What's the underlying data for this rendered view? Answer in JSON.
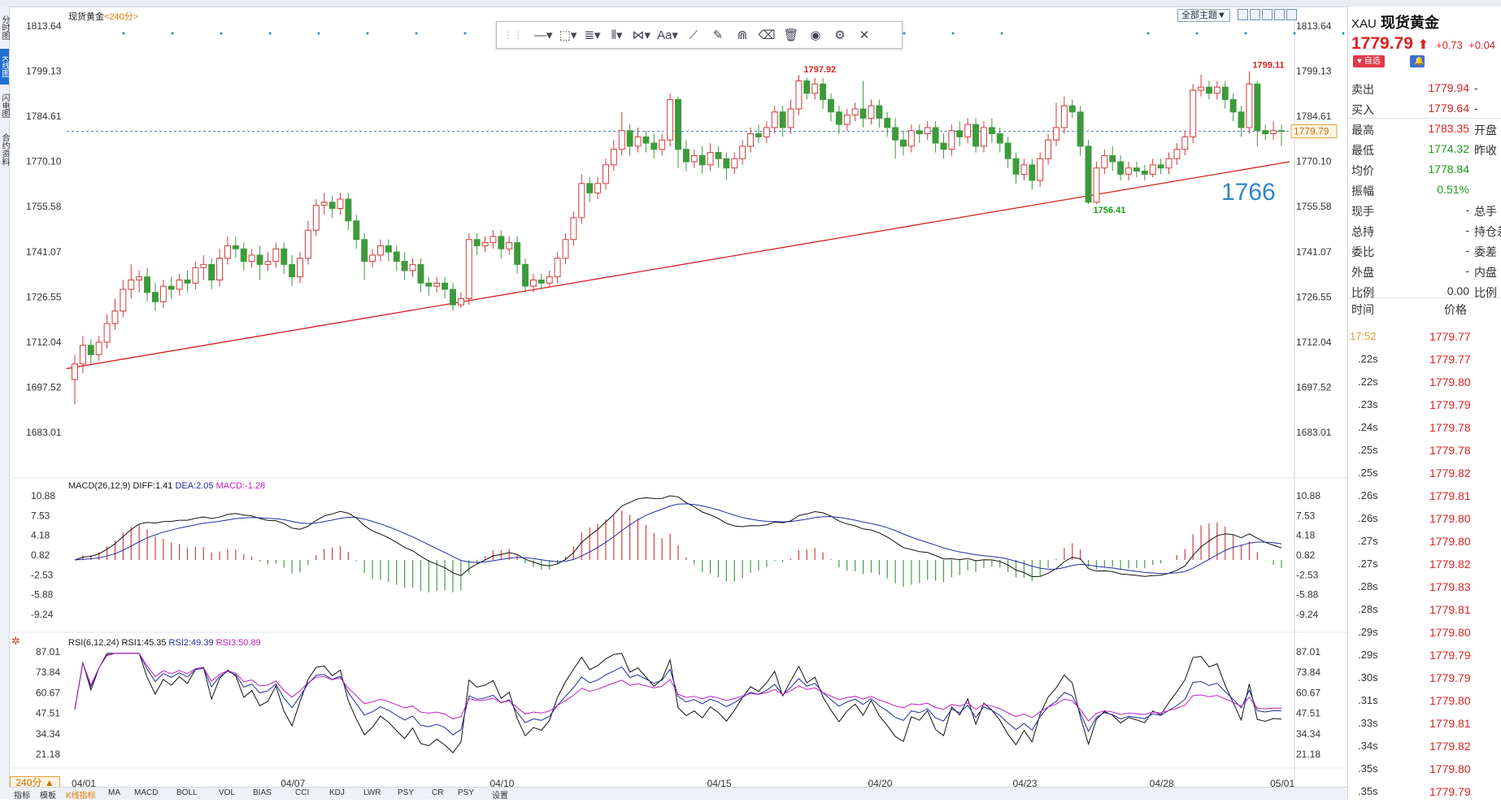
{
  "chart_data": [
    {
      "type": "candlestick",
      "title": "现货黄金",
      "period_label": "240分",
      "y_ticks": [
        1813.64,
        1799.13,
        1784.61,
        1770.1,
        1755.58,
        1741.07,
        1726.55,
        1712.04,
        1697.52,
        1683.01
      ],
      "x_labels": [
        "04/01",
        "04/07",
        "04/10",
        "04/15",
        "04/20",
        "04/23",
        "04/28",
        "05/01"
      ],
      "current_price": 1779.79,
      "high_label": "1797.92",
      "high2_label": "1799.11",
      "low_label": "1756.41",
      "annotation": "1766",
      "trendline": [
        [
          0,
          1703.5
        ],
        [
          206,
          1770.0
        ]
      ],
      "candles": [
        [
          1700,
          1705,
          1692,
          1708
        ],
        [
          1705,
          1711,
          1702,
          1714
        ],
        [
          1711,
          1708,
          1705,
          1713
        ],
        [
          1708,
          1712,
          1706,
          1714
        ],
        [
          1712,
          1718,
          1710,
          1721
        ],
        [
          1718,
          1722,
          1716,
          1726
        ],
        [
          1722,
          1729,
          1720,
          1732
        ],
        [
          1729,
          1732,
          1726,
          1737
        ],
        [
          1732,
          1733,
          1728,
          1735
        ],
        [
          1733,
          1728,
          1725,
          1736
        ],
        [
          1728,
          1725,
          1722,
          1731
        ],
        [
          1725,
          1730,
          1723,
          1732
        ],
        [
          1730,
          1729,
          1726,
          1733
        ],
        [
          1729,
          1732,
          1727,
          1734
        ],
        [
          1732,
          1731,
          1728,
          1735
        ],
        [
          1731,
          1736,
          1729,
          1738
        ],
        [
          1736,
          1737,
          1732,
          1740
        ],
        [
          1737,
          1732,
          1729,
          1739
        ],
        [
          1732,
          1739,
          1730,
          1742
        ],
        [
          1739,
          1743,
          1737,
          1746
        ],
        [
          1743,
          1742,
          1739,
          1746
        ],
        [
          1742,
          1738,
          1735,
          1744
        ],
        [
          1738,
          1740,
          1736,
          1742
        ],
        [
          1740,
          1737,
          1732,
          1743
        ],
        [
          1737,
          1738,
          1735,
          1741
        ],
        [
          1738,
          1742,
          1736,
          1744
        ],
        [
          1742,
          1737,
          1734,
          1744
        ],
        [
          1737,
          1733,
          1730,
          1740
        ],
        [
          1733,
          1739,
          1731,
          1741
        ],
        [
          1739,
          1748,
          1737,
          1751
        ],
        [
          1748,
          1756,
          1746,
          1758
        ],
        [
          1756,
          1757,
          1753,
          1760
        ],
        [
          1757,
          1755,
          1752,
          1759
        ],
        [
          1755,
          1758,
          1753,
          1760
        ],
        [
          1758,
          1751,
          1748,
          1760
        ],
        [
          1751,
          1745,
          1742,
          1753
        ],
        [
          1745,
          1738,
          1732,
          1747
        ],
        [
          1738,
          1740,
          1736,
          1742
        ],
        [
          1740,
          1743,
          1738,
          1745
        ],
        [
          1743,
          1741,
          1738,
          1745
        ],
        [
          1741,
          1738,
          1735,
          1743
        ],
        [
          1738,
          1735,
          1732,
          1741
        ],
        [
          1735,
          1737,
          1733,
          1739
        ],
        [
          1737,
          1731,
          1728,
          1739
        ],
        [
          1731,
          1730,
          1727,
          1733
        ],
        [
          1730,
          1731,
          1728,
          1733
        ],
        [
          1731,
          1729,
          1726,
          1733
        ],
        [
          1729,
          1724,
          1722,
          1731
        ],
        [
          1724,
          1726,
          1723,
          1728
        ],
        [
          1726,
          1745,
          1724,
          1747
        ],
        [
          1745,
          1743,
          1740,
          1747
        ],
        [
          1743,
          1744,
          1741,
          1746
        ],
        [
          1744,
          1746,
          1742,
          1748
        ],
        [
          1746,
          1742,
          1739,
          1748
        ],
        [
          1742,
          1744,
          1740,
          1746
        ],
        [
          1744,
          1737,
          1734,
          1746
        ],
        [
          1737,
          1730,
          1728,
          1739
        ],
        [
          1730,
          1732,
          1728,
          1734
        ],
        [
          1732,
          1731,
          1729,
          1734
        ],
        [
          1731,
          1733,
          1730,
          1735
        ],
        [
          1733,
          1739,
          1731,
          1741
        ],
        [
          1739,
          1745,
          1737,
          1747
        ],
        [
          1745,
          1752,
          1743,
          1754
        ],
        [
          1752,
          1763,
          1750,
          1766
        ],
        [
          1763,
          1760,
          1757,
          1765
        ],
        [
          1760,
          1763,
          1758,
          1765
        ],
        [
          1763,
          1769,
          1761,
          1771
        ],
        [
          1769,
          1774,
          1767,
          1777
        ],
        [
          1774,
          1780,
          1772,
          1786
        ],
        [
          1780,
          1775,
          1772,
          1782
        ],
        [
          1775,
          1778,
          1773,
          1781
        ],
        [
          1778,
          1776,
          1773,
          1780
        ],
        [
          1776,
          1774,
          1771,
          1779
        ],
        [
          1774,
          1777,
          1772,
          1779
        ],
        [
          1777,
          1790,
          1775,
          1792
        ],
        [
          1790,
          1774,
          1768,
          1791
        ],
        [
          1774,
          1770,
          1767,
          1777
        ],
        [
          1770,
          1772,
          1768,
          1774
        ],
        [
          1772,
          1769,
          1766,
          1775
        ],
        [
          1769,
          1773,
          1767,
          1776
        ],
        [
          1773,
          1771,
          1768,
          1775
        ],
        [
          1771,
          1768,
          1764,
          1773
        ],
        [
          1768,
          1771,
          1766,
          1773
        ],
        [
          1771,
          1775,
          1769,
          1777
        ],
        [
          1775,
          1779,
          1773,
          1781
        ],
        [
          1779,
          1778,
          1776,
          1782
        ],
        [
          1778,
          1781,
          1776,
          1783
        ],
        [
          1781,
          1786,
          1779,
          1788
        ],
        [
          1786,
          1781,
          1778,
          1788
        ],
        [
          1781,
          1787,
          1779,
          1790
        ],
        [
          1787,
          1796,
          1785,
          1797.92
        ],
        [
          1796,
          1792,
          1790,
          1797
        ],
        [
          1792,
          1795,
          1790,
          1797
        ],
        [
          1795,
          1790,
          1787,
          1797
        ],
        [
          1790,
          1786,
          1783,
          1792
        ],
        [
          1786,
          1782,
          1779,
          1788
        ],
        [
          1782,
          1785,
          1780,
          1787
        ],
        [
          1785,
          1787,
          1783,
          1789
        ],
        [
          1787,
          1784,
          1781,
          1796
        ],
        [
          1784,
          1788,
          1782,
          1790
        ],
        [
          1788,
          1784,
          1781,
          1790
        ],
        [
          1784,
          1781,
          1778,
          1786
        ],
        [
          1781,
          1777,
          1771,
          1784
        ],
        [
          1777,
          1775,
          1772,
          1780
        ],
        [
          1775,
          1780,
          1773,
          1782
        ],
        [
          1780,
          1779,
          1776,
          1782
        ],
        [
          1779,
          1781,
          1777,
          1783
        ],
        [
          1781,
          1776,
          1773,
          1783
        ],
        [
          1776,
          1774,
          1771,
          1779
        ],
        [
          1774,
          1780,
          1772,
          1782
        ],
        [
          1780,
          1778,
          1775,
          1783
        ],
        [
          1778,
          1782,
          1776,
          1784
        ],
        [
          1782,
          1775,
          1773,
          1784
        ],
        [
          1775,
          1781,
          1773,
          1783
        ],
        [
          1781,
          1779,
          1776,
          1784
        ],
        [
          1779,
          1776,
          1773,
          1781
        ],
        [
          1776,
          1771,
          1768,
          1778
        ],
        [
          1771,
          1766,
          1763,
          1773
        ],
        [
          1766,
          1769,
          1764,
          1771
        ],
        [
          1769,
          1764,
          1761,
          1771
        ],
        [
          1764,
          1771,
          1762,
          1773
        ],
        [
          1771,
          1777,
          1769,
          1779
        ],
        [
          1777,
          1781,
          1775,
          1789
        ],
        [
          1781,
          1788,
          1779,
          1791
        ],
        [
          1788,
          1786,
          1784,
          1790
        ],
        [
          1786,
          1775,
          1772,
          1788
        ],
        [
          1775,
          1757,
          1756.41,
          1777
        ],
        [
          1757,
          1768,
          1756.41,
          1770
        ],
        [
          1768,
          1772,
          1766,
          1774
        ],
        [
          1772,
          1770,
          1767,
          1775
        ],
        [
          1770,
          1766,
          1764,
          1772
        ],
        [
          1766,
          1768,
          1764,
          1770
        ],
        [
          1768,
          1767,
          1765,
          1770
        ],
        [
          1767,
          1766,
          1764,
          1769
        ],
        [
          1766,
          1769,
          1765,
          1771
        ],
        [
          1769,
          1768,
          1766,
          1771
        ],
        [
          1768,
          1771,
          1766,
          1773
        ],
        [
          1771,
          1774,
          1769,
          1776
        ],
        [
          1774,
          1778,
          1772,
          1780
        ],
        [
          1778,
          1793,
          1776,
          1795
        ],
        [
          1793,
          1794,
          1791,
          1798
        ],
        [
          1794,
          1792,
          1790,
          1796
        ],
        [
          1792,
          1794,
          1790,
          1796
        ],
        [
          1794,
          1790,
          1787,
          1796
        ],
        [
          1790,
          1786,
          1783,
          1792
        ],
        [
          1786,
          1781,
          1778,
          1788
        ],
        [
          1781,
          1795,
          1779,
          1799.11
        ],
        [
          1795,
          1780,
          1775,
          1796
        ],
        [
          1780,
          1779,
          1777,
          1782
        ],
        [
          1779,
          1780,
          1777,
          1783
        ],
        [
          1780,
          1779.79,
          1775,
          1782
        ]
      ]
    },
    {
      "type": "line",
      "title": "MACD(26,12,9)",
      "legend": [
        "DIFF:1.41",
        "DEA:2.05",
        "MACD:-1.28"
      ],
      "y_ticks": [
        10.88,
        7.53,
        4.18,
        0.82,
        -2.53,
        -5.88,
        -9.24
      ]
    },
    {
      "type": "line",
      "title": "RSI(6,12,24)",
      "legend": [
        "RSI1:45.35",
        "RSI2:49.39",
        "RSI3:50.89"
      ],
      "y_ticks": [
        87.01,
        73.84,
        60.67,
        47.51,
        34.34,
        21.18
      ]
    }
  ],
  "toolbar": {
    "theme_label": "全部主题▼"
  },
  "left_rail": [
    "分时图",
    "K线图",
    "闪电图",
    "合约资料"
  ],
  "bottom_bar": [
    "指标",
    "模板",
    "K线指标",
    "MA",
    "MACD",
    "BOLL",
    "VOL",
    "BIAS",
    "CCI",
    "KDJ",
    "LWR",
    "PSY",
    "CR",
    "PSY",
    "设置"
  ],
  "quote": {
    "symbol": "XAU",
    "name": "现货黄金",
    "price": "1779.79",
    "arrow": "⬆",
    "change": "+0.73",
    "change_pct": "+0.04",
    "watch_label": "自选",
    "rows": [
      {
        "l": "卖出",
        "v": "1779.94",
        "r": "-",
        "color": "#d22"
      },
      {
        "l": "买入",
        "v": "1779.64",
        "r": "-",
        "color": "#d22"
      },
      {
        "l": "最高",
        "v": "1783.35",
        "r": "开盘",
        "color": "#d22"
      },
      {
        "l": "最低",
        "v": "1774.32",
        "r": "昨收",
        "color": "#1a9a1a"
      },
      {
        "l": "均价",
        "v": "1778.84",
        "r": "",
        "color": "#1a9a1a"
      },
      {
        "l": "振幅",
        "v": "0.51%",
        "r": "",
        "color": "#1a9a1a"
      },
      {
        "l": "现手",
        "v": "-",
        "r": "总手",
        "color": "#333"
      },
      {
        "l": "总持",
        "v": "-",
        "r": "持仓差",
        "color": "#333"
      },
      {
        "l": "委比",
        "v": "-",
        "r": "委差",
        "color": "#333"
      },
      {
        "l": "外盘",
        "v": "-",
        "r": "内盘",
        "color": "#333"
      },
      {
        "l": "比例",
        "v": "0.00",
        "r": "比例",
        "color": "#333"
      }
    ],
    "tick_header": [
      "时间",
      "价格"
    ],
    "ticks": [
      {
        "t": "17:52",
        "p": "1779.77"
      },
      {
        "t": ".22s",
        "p": "1779.77"
      },
      {
        "t": ".22s",
        "p": "1779.80"
      },
      {
        "t": ".23s",
        "p": "1779.79"
      },
      {
        "t": ".24s",
        "p": "1779.78"
      },
      {
        "t": ".25s",
        "p": "1779.78"
      },
      {
        "t": ".25s",
        "p": "1779.82"
      },
      {
        "t": ".26s",
        "p": "1779.81"
      },
      {
        "t": ".26s",
        "p": "1779.80"
      },
      {
        "t": ".27s",
        "p": "1779.80"
      },
      {
        "t": ".27s",
        "p": "1779.82"
      },
      {
        "t": ".28s",
        "p": "1779.83"
      },
      {
        "t": ".28s",
        "p": "1779.81"
      },
      {
        "t": ".29s",
        "p": "1779.80"
      },
      {
        "t": ".29s",
        "p": "1779.79"
      },
      {
        "t": ".30s",
        "p": "1779.79"
      },
      {
        "t": ".31s",
        "p": "1779.80"
      },
      {
        "t": ".33s",
        "p": "1779.81"
      },
      {
        "t": ".34s",
        "p": "1779.82"
      },
      {
        "t": ".35s",
        "p": "1779.80"
      },
      {
        "t": ".35s",
        "p": "1779.79"
      }
    ]
  },
  "colors": {
    "up": "#d23a3a",
    "down": "#3c9a3c",
    "trend": "#d42020",
    "diff": "#111111",
    "dea": "#1f2fa0",
    "rsi3": "#c020c0",
    "annot": "#2e86d0"
  }
}
